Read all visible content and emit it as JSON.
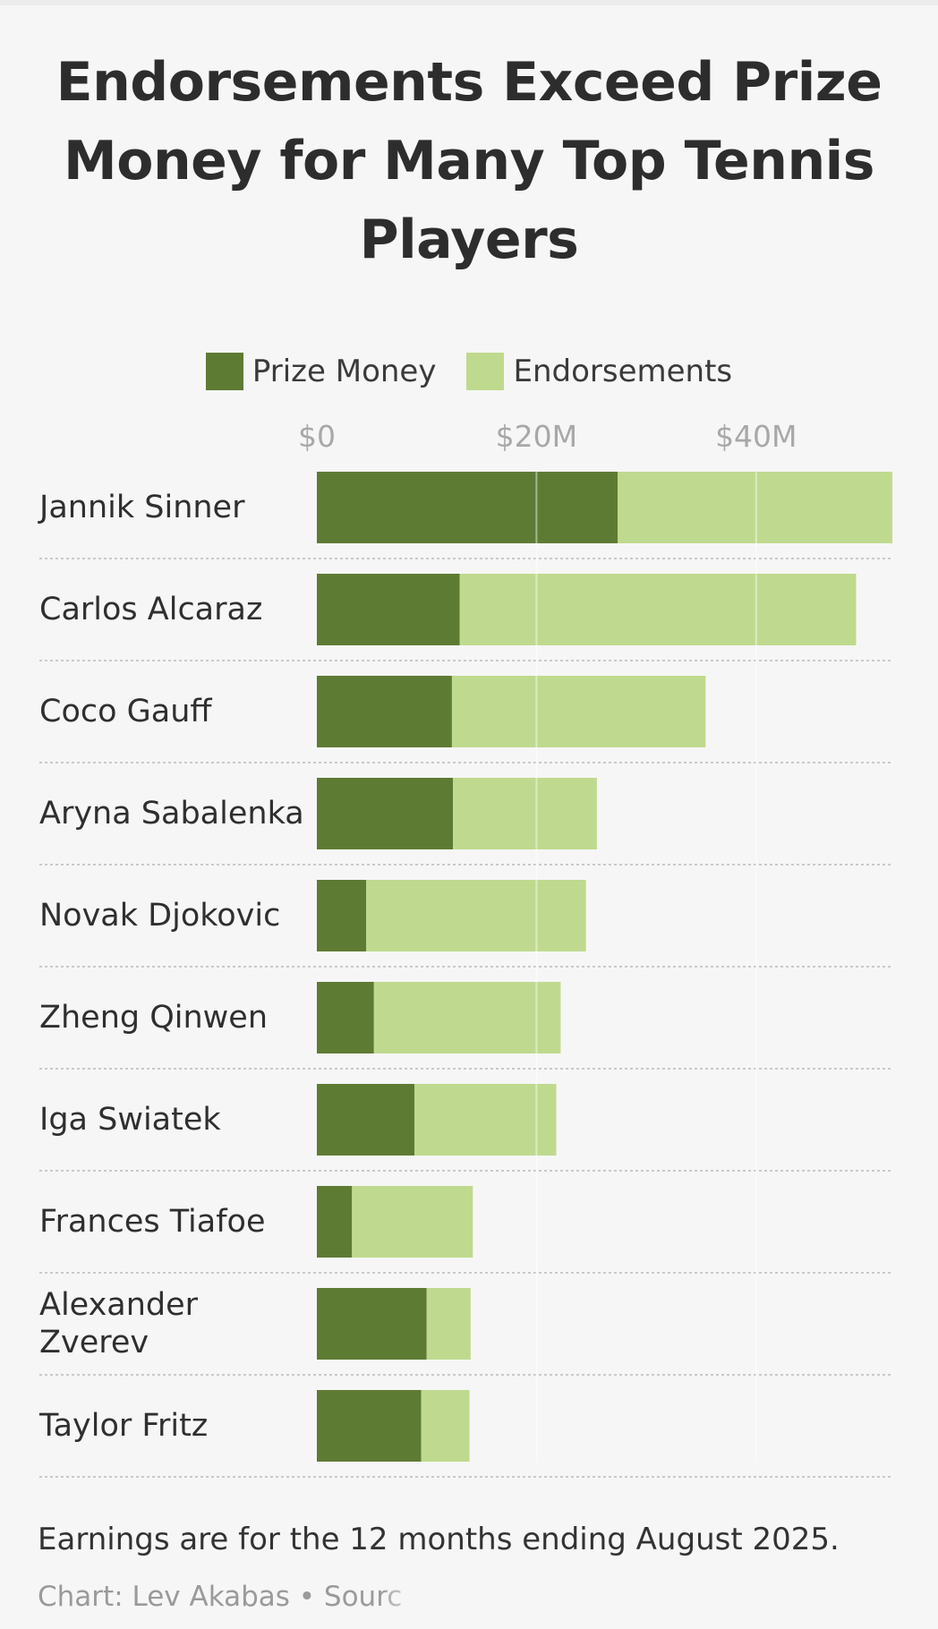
{
  "title": "Endorsements Exceed Prize Money for Many Top Tennis Players",
  "legend": {
    "prize": "Prize Money",
    "endorsements": "Endorsements"
  },
  "colors": {
    "prize": "#5e7b34",
    "endorsements": "#bfda8e",
    "background": "#f6f6f6"
  },
  "note": "Earnings are for the 12 months ending August 2025.",
  "credit": "Chart: Lev Akabas • Sourc",
  "chart_data": {
    "type": "bar",
    "orientation": "horizontal",
    "stacked": true,
    "title": "Endorsements Exceed Prize Money for Many Top Tennis Players",
    "xlabel": "",
    "ylabel": "",
    "x_ticks": [
      "$0",
      "$20M",
      "$40M"
    ],
    "x_tick_values": [
      0,
      20,
      40
    ],
    "xlim": [
      0,
      52.5
    ],
    "grid": true,
    "legend_position": "top",
    "categories": [
      "Jannik Sinner",
      "Carlos Alcaraz",
      "Coco Gauff",
      "Aryna Sabalenka",
      "Novak Djokovic",
      "Zheng Qinwen",
      "Iga Swiatek",
      "Frances Tiafoe",
      "Alexander Zverev",
      "Taylor Fritz"
    ],
    "series": [
      {
        "name": "Prize Money",
        "values": [
          27.4,
          13.0,
          12.3,
          12.4,
          4.5,
          5.2,
          8.9,
          3.2,
          10.0,
          9.5
        ]
      },
      {
        "name": "Endorsements",
        "values": [
          25.0,
          36.1,
          23.1,
          13.1,
          20.0,
          17.0,
          12.9,
          11.0,
          4.0,
          4.4
        ]
      }
    ]
  }
}
